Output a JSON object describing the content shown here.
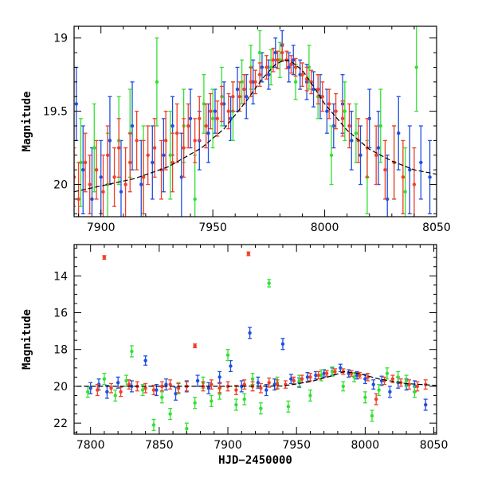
{
  "chart_data": [
    {
      "type": "scatter",
      "title": "",
      "xlabel": "",
      "ylabel": "Magnitude",
      "xlim": [
        7888,
        8050
      ],
      "ylim": [
        20.22,
        18.92
      ],
      "y_inverted": true,
      "grid": false,
      "x_ticks": [
        7900,
        7950,
        8000,
        8050
      ],
      "y_ticks": [
        19,
        19.5,
        20
      ],
      "y_tick_labels": [
        "19",
        "19.5",
        "20"
      ],
      "model_curve": {
        "name": "",
        "color": "#000000",
        "style": "dashed",
        "x": [
          7888,
          7900,
          7915,
          7930,
          7945,
          7955,
          7965,
          7972,
          7978,
          7982,
          7985,
          7990,
          7995,
          8000,
          8010,
          8020,
          8030,
          8040,
          8050
        ],
        "y": [
          20.05,
          20.01,
          19.96,
          19.88,
          19.75,
          19.62,
          19.43,
          19.28,
          19.18,
          19.15,
          19.16,
          19.22,
          19.33,
          19.45,
          19.63,
          19.76,
          19.84,
          19.9,
          19.93
        ]
      },
      "series": [
        {
          "name": "",
          "color": "#1f4fe0",
          "x": [
            7889,
            7892,
            7896,
            7900,
            7904,
            7909,
            7914,
            7918,
            7923,
            7928,
            7932,
            7936,
            7940,
            7944,
            7948,
            7951,
            7955,
            7958,
            7961,
            7965,
            7968,
            7972,
            7975,
            7978,
            7981,
            7984,
            7986,
            7989,
            7992,
            7995,
            7998,
            8001,
            8004,
            8008,
            8012,
            8016,
            8020,
            8024,
            8028,
            8033,
            8038,
            8043,
            8047
          ],
          "y": [
            19.45,
            19.9,
            20.1,
            19.95,
            19.7,
            20.05,
            19.6,
            20.0,
            19.85,
            19.8,
            19.6,
            19.95,
            19.55,
            19.7,
            19.65,
            19.5,
            19.45,
            19.55,
            19.35,
            19.4,
            19.3,
            19.2,
            19.25,
            19.1,
            19.05,
            19.2,
            19.15,
            19.25,
            19.3,
            19.35,
            19.4,
            19.5,
            19.6,
            19.45,
            19.7,
            19.8,
            19.55,
            19.75,
            20.1,
            19.65,
            19.9,
            19.85,
            19.95
          ],
          "err": [
            0.25,
            0.3,
            0.35,
            0.25,
            0.3,
            0.35,
            0.3,
            0.3,
            0.25,
            0.25,
            0.2,
            0.3,
            0.2,
            0.2,
            0.2,
            0.15,
            0.15,
            0.15,
            0.15,
            0.15,
            0.15,
            0.1,
            0.1,
            0.1,
            0.1,
            0.1,
            0.1,
            0.1,
            0.12,
            0.12,
            0.15,
            0.15,
            0.15,
            0.2,
            0.2,
            0.2,
            0.2,
            0.25,
            0.3,
            0.25,
            0.3,
            0.25,
            0.25
          ]
        },
        {
          "name": "",
          "color": "#33e033",
          "x": [
            7891,
            7897,
            7903,
            7908,
            7913,
            7919,
            7925,
            7931,
            7937,
            7942,
            7946,
            7950,
            7954,
            7959,
            7963,
            7967,
            7971,
            7976,
            7980,
            7987,
            7993,
            7997,
            8003,
            8009,
            8014,
            8019,
            8025,
            8031,
            8036,
            8041
          ],
          "y": [
            19.85,
            19.75,
            20.0,
            19.7,
            19.65,
            19.95,
            19.3,
            19.8,
            19.6,
            20.1,
            19.45,
            19.55,
            19.4,
            19.5,
            19.3,
            19.2,
            19.1,
            19.2,
            19.15,
            19.3,
            19.2,
            19.4,
            19.8,
            19.5,
            19.65,
            19.95,
            19.6,
            19.85,
            20.05,
            19.2
          ],
          "err": [
            0.3,
            0.3,
            0.35,
            0.3,
            0.3,
            0.35,
            0.3,
            0.3,
            0.25,
            0.3,
            0.2,
            0.2,
            0.2,
            0.2,
            0.15,
            0.15,
            0.15,
            0.12,
            0.12,
            0.12,
            0.15,
            0.15,
            0.2,
            0.2,
            0.2,
            0.25,
            0.25,
            0.25,
            0.3,
            0.3
          ]
        },
        {
          "name": "",
          "color": "#f04028",
          "x": [
            7888,
            7890,
            7893,
            7895,
            7898,
            7901,
            7903,
            7906,
            7908,
            7911,
            7913,
            7916,
            7919,
            7921,
            7924,
            7927,
            7929,
            7932,
            7934,
            7937,
            7939,
            7942,
            7944,
            7947,
            7949,
            7952,
            7954,
            7957,
            7959,
            7962,
            7964,
            7967,
            7969,
            7971,
            7974,
            7977,
            7979,
            7981,
            7983,
            7985,
            7987,
            7990,
            7992,
            7994,
            7997,
            7999,
            8002,
            8005,
            8008,
            8011,
            8015,
            8019,
            8023,
            8027,
            8031,
            8035,
            8040
          ],
          "y": [
            19.95,
            20.1,
            19.85,
            20.0,
            19.9,
            20.05,
            19.8,
            19.95,
            19.75,
            20.0,
            19.85,
            19.7,
            19.95,
            19.8,
            19.75,
            19.9,
            19.7,
            19.85,
            19.65,
            19.75,
            19.6,
            19.7,
            19.55,
            19.6,
            19.5,
            19.55,
            19.45,
            19.5,
            19.4,
            19.4,
            19.35,
            19.3,
            19.3,
            19.25,
            19.2,
            19.15,
            19.15,
            19.1,
            19.15,
            19.18,
            19.2,
            19.25,
            19.28,
            19.3,
            19.35,
            19.4,
            19.45,
            19.5,
            19.55,
            19.6,
            19.7,
            19.75,
            19.8,
            19.9,
            19.85,
            19.95,
            20.0
          ],
          "err": [
            0.2,
            0.25,
            0.2,
            0.2,
            0.2,
            0.25,
            0.2,
            0.2,
            0.2,
            0.25,
            0.2,
            0.2,
            0.25,
            0.2,
            0.2,
            0.2,
            0.2,
            0.2,
            0.2,
            0.2,
            0.15,
            0.15,
            0.15,
            0.15,
            0.12,
            0.12,
            0.12,
            0.12,
            0.1,
            0.1,
            0.1,
            0.1,
            0.08,
            0.08,
            0.08,
            0.08,
            0.06,
            0.06,
            0.06,
            0.06,
            0.06,
            0.08,
            0.08,
            0.08,
            0.1,
            0.1,
            0.1,
            0.12,
            0.12,
            0.15,
            0.15,
            0.2,
            0.2,
            0.2,
            0.25,
            0.25,
            0.25
          ]
        }
      ]
    },
    {
      "type": "scatter",
      "title": "",
      "xlabel": "HJD−2450000",
      "ylabel": "Magnitude",
      "xlim": [
        7788,
        8052
      ],
      "ylim": [
        22.6,
        12.3
      ],
      "y_inverted": true,
      "grid": false,
      "x_ticks": [
        7800,
        7850,
        7900,
        7950,
        8000,
        8050
      ],
      "y_ticks": [
        14,
        16,
        18,
        20,
        22
      ],
      "y_tick_labels": [
        "14",
        "16",
        "18",
        "20",
        "22"
      ],
      "model_curve": {
        "name": "",
        "color": "#000000",
        "style": "dashed",
        "x": [
          7790,
          7850,
          7900,
          7940,
          7960,
          7975,
          7985,
          7995,
          8010,
          8030,
          8052
        ],
        "y": [
          20.0,
          20.0,
          20.0,
          19.98,
          19.75,
          19.45,
          19.2,
          19.3,
          19.6,
          19.85,
          19.95
        ]
      },
      "series": [
        {
          "name": "",
          "color": "#1f4fe0",
          "x": [
            7800,
            7806,
            7812,
            7820,
            7830,
            7840,
            7848,
            7855,
            7862,
            7870,
            7878,
            7886,
            7894,
            7902,
            7910,
            7916,
            7922,
            7928,
            7934,
            7940,
            7946,
            7952,
            7958,
            7964,
            7970,
            7976,
            7982,
            7988,
            7994,
            8000,
            8006,
            8012,
            8018,
            8024,
            8030,
            8036,
            8044
          ],
          "y": [
            20.1,
            19.9,
            20.3,
            19.8,
            20.0,
            18.6,
            20.2,
            19.9,
            20.4,
            20.0,
            19.7,
            20.1,
            19.5,
            18.9,
            20.0,
            17.1,
            19.8,
            20.2,
            19.9,
            17.7,
            19.6,
            19.8,
            19.5,
            19.4,
            19.3,
            19.2,
            19.0,
            19.3,
            19.4,
            19.6,
            19.9,
            19.7,
            20.3,
            19.8,
            19.9,
            20.0,
            21.0
          ],
          "err": [
            0.3,
            0.3,
            0.35,
            0.3,
            0.3,
            0.25,
            0.3,
            0.3,
            0.35,
            0.3,
            0.3,
            0.3,
            0.3,
            0.3,
            0.3,
            0.3,
            0.3,
            0.3,
            0.3,
            0.3,
            0.25,
            0.25,
            0.25,
            0.2,
            0.2,
            0.2,
            0.2,
            0.2,
            0.2,
            0.25,
            0.25,
            0.25,
            0.3,
            0.3,
            0.3,
            0.3,
            0.3
          ]
        },
        {
          "name": "",
          "color": "#33e033",
          "x": [
            7798,
            7810,
            7818,
            7826,
            7830,
            7838,
            7846,
            7852,
            7858,
            7864,
            7870,
            7876,
            7882,
            7888,
            7894,
            7900,
            7906,
            7912,
            7918,
            7924,
            7930,
            7936,
            7944,
            7952,
            7960,
            7968,
            7976,
            7984,
            7992,
            8000,
            8005,
            8010,
            8016,
            8024,
            8030,
            8036
          ],
          "y": [
            20.3,
            19.6,
            20.5,
            19.7,
            18.1,
            20.2,
            22.1,
            20.6,
            21.5,
            20.1,
            22.3,
            20.9,
            19.8,
            20.8,
            20.4,
            18.3,
            21.0,
            20.7,
            19.6,
            21.2,
            14.4,
            19.8,
            21.1,
            19.7,
            20.5,
            19.4,
            19.2,
            20.0,
            19.5,
            20.6,
            21.6,
            20.2,
            19.3,
            19.5,
            19.7,
            20.3
          ],
          "err": [
            0.3,
            0.3,
            0.3,
            0.3,
            0.3,
            0.3,
            0.3,
            0.3,
            0.3,
            0.3,
            0.3,
            0.3,
            0.3,
            0.3,
            0.3,
            0.3,
            0.3,
            0.3,
            0.3,
            0.3,
            0.2,
            0.3,
            0.3,
            0.3,
            0.3,
            0.3,
            0.25,
            0.25,
            0.25,
            0.3,
            0.3,
            0.3,
            0.3,
            0.3,
            0.3,
            0.3
          ]
        },
        {
          "name": "",
          "color": "#f04028",
          "x": [
            7805,
            7810,
            7815,
            7822,
            7828,
            7834,
            7840,
            7846,
            7852,
            7858,
            7864,
            7870,
            7876,
            7882,
            7888,
            7894,
            7900,
            7906,
            7912,
            7915,
            7918,
            7924,
            7930,
            7936,
            7942,
            7948,
            7954,
            7960,
            7966,
            7972,
            7978,
            7984,
            7990,
            7996,
            8002,
            8008,
            8014,
            8020,
            8026,
            8032,
            8038,
            8044
          ],
          "y": [
            20.2,
            13.0,
            20.1,
            20.3,
            19.9,
            20.0,
            20.1,
            20.2,
            20.0,
            19.9,
            20.1,
            20.0,
            17.8,
            20.0,
            19.9,
            20.1,
            20.0,
            20.2,
            19.9,
            12.8,
            20.0,
            20.1,
            19.8,
            19.9,
            19.9,
            19.7,
            19.6,
            19.5,
            19.4,
            19.3,
            19.2,
            19.2,
            19.3,
            19.4,
            19.5,
            20.7,
            19.7,
            19.6,
            19.8,
            19.9,
            20.0,
            19.9
          ],
          "err": [
            0.3,
            0.1,
            0.25,
            0.25,
            0.25,
            0.25,
            0.25,
            0.25,
            0.25,
            0.25,
            0.25,
            0.25,
            0.1,
            0.25,
            0.25,
            0.25,
            0.25,
            0.25,
            0.25,
            0.1,
            0.25,
            0.25,
            0.25,
            0.25,
            0.2,
            0.2,
            0.2,
            0.2,
            0.2,
            0.15,
            0.15,
            0.15,
            0.15,
            0.15,
            0.2,
            0.3,
            0.2,
            0.2,
            0.2,
            0.25,
            0.25,
            0.25
          ]
        }
      ]
    }
  ]
}
